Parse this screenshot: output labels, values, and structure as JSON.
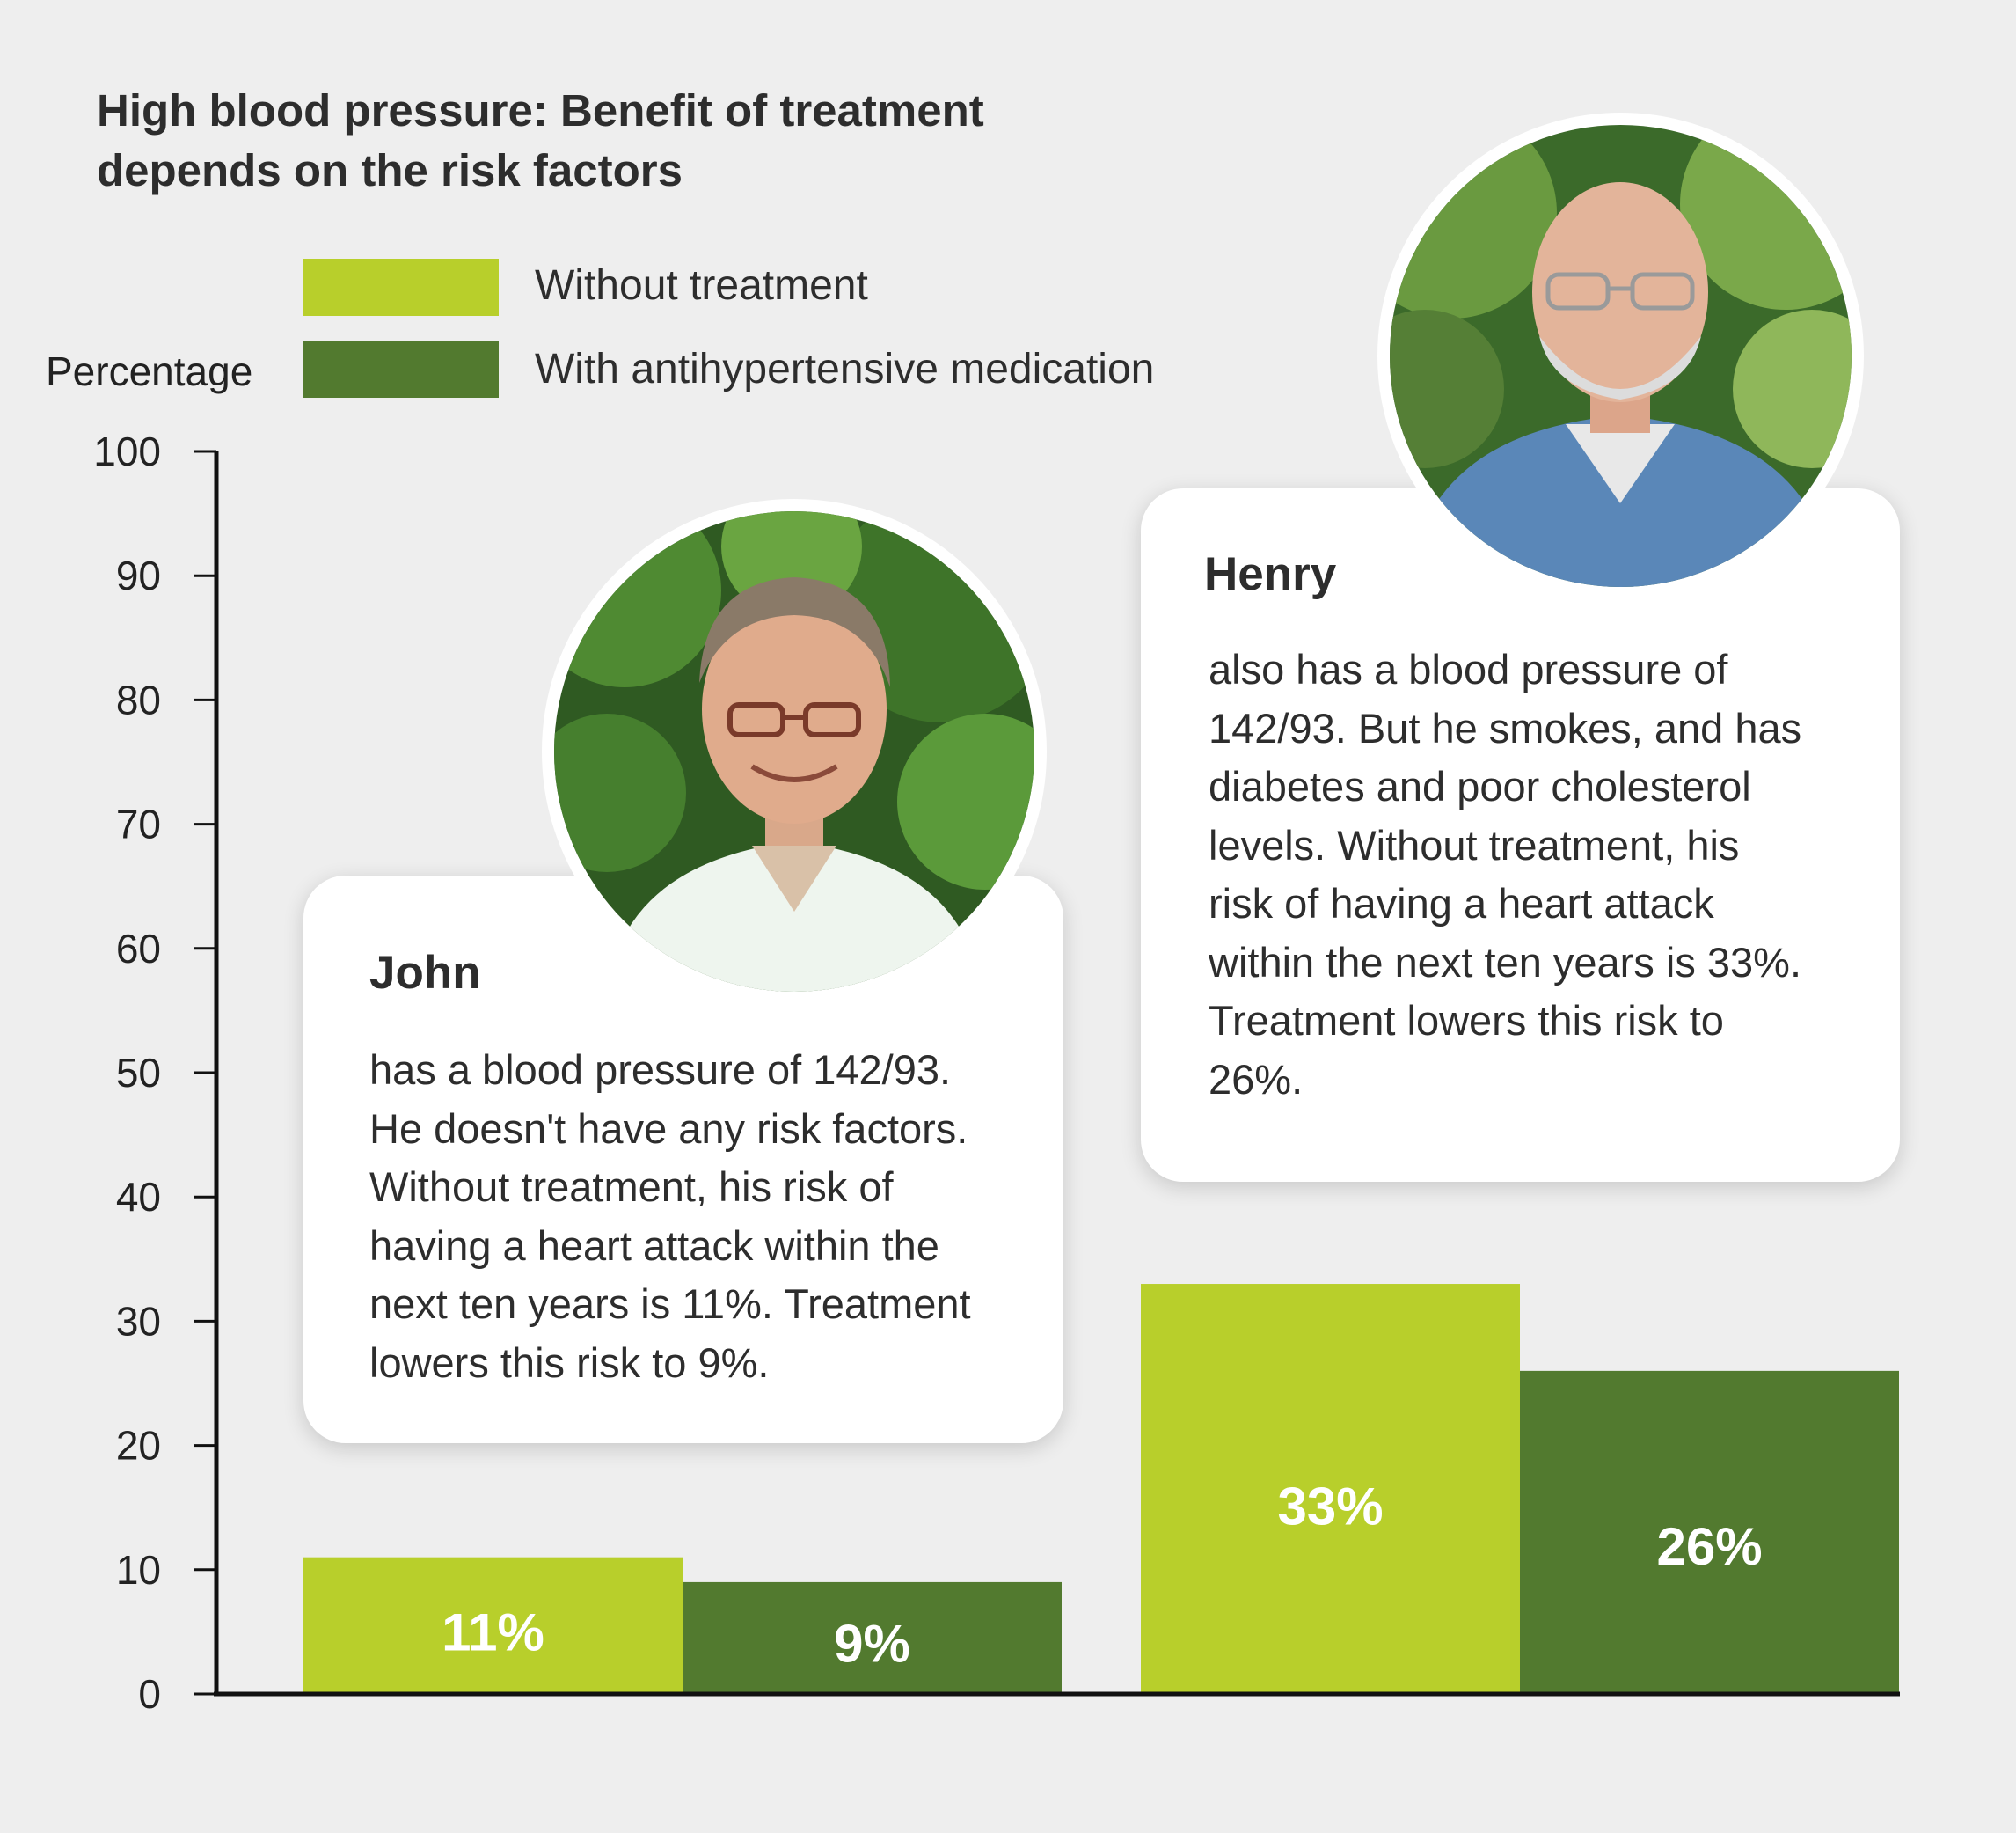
{
  "title_lines": [
    "High blood pressure: Benefit of treatment",
    "depends on the risk factors"
  ],
  "legend": [
    {
      "label": "Without treatment",
      "color": "#b8cf2b"
    },
    {
      "label": "With antihypertensive medication",
      "color": "#527a2f"
    }
  ],
  "ylabel": "Percentage",
  "cards": {
    "john": {
      "name": "John",
      "lines": [
        "has a blood pressure of 142/93.",
        "He doesn't have any risk factors.",
        "Without treatment, his risk of",
        "having a heart attack within the",
        "next ten years is 11%. Treatment",
        "lowers this risk to 9%."
      ]
    },
    "henry": {
      "name": "Henry",
      "lines": [
        "also has a blood pressure of",
        "142/93. But he smokes, and has",
        "diabetes and poor cholesterol",
        "levels. Without treatment, his",
        "risk of having a heart attack",
        "within the next ten years is 33%.",
        "Treatment lowers this risk to",
        "26%."
      ]
    }
  },
  "chart_data": {
    "type": "bar",
    "title": "High blood pressure: Benefit of treatment depends on the risk factors",
    "ylabel": "Percentage",
    "xlabel": "",
    "ylim": [
      0,
      100
    ],
    "yticks": [
      0,
      10,
      20,
      30,
      40,
      50,
      60,
      70,
      80,
      90,
      100
    ],
    "categories": [
      "John",
      "Henry"
    ],
    "series": [
      {
        "name": "Without treatment",
        "color": "#b8cf2b",
        "values": [
          11,
          33
        ],
        "labels": [
          "11%",
          "33%"
        ]
      },
      {
        "name": "With antihypertensive medication",
        "color": "#527a2f",
        "values": [
          9,
          26
        ],
        "labels": [
          "9%",
          "26%"
        ]
      }
    ],
    "legend_position": "top"
  }
}
